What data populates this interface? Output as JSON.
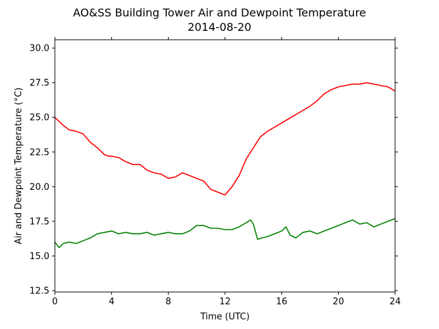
{
  "chart_data": {
    "type": "line",
    "title": "AO&SS Building Tower Air and Dewpoint Temperature",
    "subtitle": "2014-08-20",
    "xlabel": "Time (UTC)",
    "ylabel": "Air and Dewpoint Temperature (°C)",
    "xlim": [
      0,
      24
    ],
    "ylim": [
      12.4,
      30.6
    ],
    "xticks": [
      0,
      4,
      8,
      12,
      16,
      20,
      24
    ],
    "xtick_labels": [
      "0",
      "4",
      "8",
      "12",
      "16",
      "20",
      "24"
    ],
    "yticks": [
      12.5,
      15.0,
      17.5,
      20.0,
      22.5,
      25.0,
      27.5,
      30.0
    ],
    "ytick_labels": [
      "12.5",
      "15.0",
      "17.5",
      "20.0",
      "22.5",
      "25.0",
      "27.5",
      "30.0"
    ],
    "grid": false,
    "series": [
      {
        "color": "#ff0000",
        "x": [
          0,
          0.5,
          1,
          1.5,
          2,
          2.5,
          3,
          3.5,
          3.8,
          4,
          4.5,
          5,
          5.5,
          6,
          6.5,
          7,
          7.5,
          8,
          8.5,
          9,
          9.5,
          10,
          10.5,
          11,
          11.5,
          12,
          12.5,
          13,
          13.5,
          14,
          14.5,
          15,
          15.5,
          16,
          16.5,
          17,
          17.5,
          18,
          18.5,
          19,
          19.5,
          20,
          20.5,
          21,
          21.5,
          22,
          22.5,
          23,
          23.5,
          24
        ],
        "values": [
          25.0,
          24.5,
          24.1,
          24.0,
          23.8,
          23.2,
          22.8,
          22.3,
          22.2,
          22.2,
          22.1,
          21.8,
          21.6,
          21.6,
          21.2,
          21.0,
          20.9,
          20.6,
          20.7,
          21.0,
          20.8,
          20.6,
          20.4,
          19.8,
          19.6,
          19.4,
          20.0,
          20.8,
          22.0,
          22.8,
          23.6,
          24.0,
          24.3,
          24.6,
          24.9,
          25.2,
          25.5,
          25.8,
          26.2,
          26.7,
          27.0,
          27.2,
          27.3,
          27.4,
          27.4,
          27.5,
          27.4,
          27.3,
          27.2,
          26.9
        ]
      },
      {
        "color": "#008000",
        "x": [
          0,
          0.3,
          0.6,
          1,
          1.5,
          2,
          2.5,
          3,
          3.5,
          4,
          4.5,
          5,
          5.5,
          6,
          6.5,
          7,
          7.5,
          8,
          8.5,
          9,
          9.5,
          10,
          10.5,
          11,
          11.5,
          12,
          12.5,
          13,
          13.5,
          13.8,
          14,
          14.3,
          14.6,
          15,
          15.5,
          16,
          16.3,
          16.6,
          17,
          17.5,
          18,
          18.5,
          19,
          19.5,
          20,
          20.5,
          21,
          21.5,
          22,
          22.5,
          23,
          23.5,
          24
        ],
        "values": [
          16.0,
          15.6,
          15.9,
          16.0,
          15.9,
          16.1,
          16.3,
          16.6,
          16.7,
          16.8,
          16.6,
          16.7,
          16.6,
          16.6,
          16.7,
          16.5,
          16.6,
          16.7,
          16.6,
          16.6,
          16.8,
          17.2,
          17.2,
          17.0,
          17.0,
          16.9,
          16.9,
          17.1,
          17.4,
          17.6,
          17.3,
          16.2,
          16.3,
          16.4,
          16.6,
          16.8,
          17.1,
          16.5,
          16.3,
          16.7,
          16.8,
          16.6,
          16.8,
          17.0,
          17.2,
          17.4,
          17.6,
          17.3,
          17.4,
          17.1,
          17.3,
          17.5,
          17.7
        ]
      }
    ]
  }
}
